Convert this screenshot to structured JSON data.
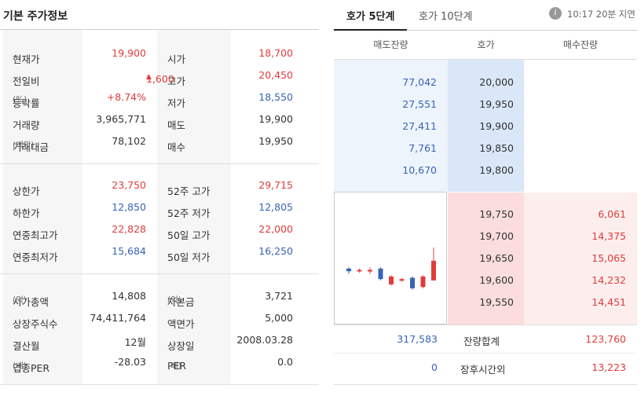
{
  "basic": {
    "title": "기본 주가정보",
    "section1": [
      {
        "l1": "현재가",
        "u1": "",
        "v1": "19,900",
        "c1": "red",
        "l2": "시가",
        "u2": "",
        "v2": "18,700",
        "c2": "red"
      },
      {
        "l1": "전일비",
        "u1": "",
        "v1": "1,600",
        "arrow": "▲",
        "c1": "red",
        "l2": "고가",
        "u2": "",
        "v2": "20,450",
        "c2": "red"
      },
      {
        "l1": "등락률",
        "u1": "(%)",
        "v1": "+8.74%",
        "c1": "red",
        "l2": "저가",
        "u2": "",
        "v2": "18,550",
        "c2": "blue"
      },
      {
        "l1": "거래량",
        "u1": "",
        "v1": "3,965,771",
        "c1": "dark",
        "l2": "매도",
        "u2": "",
        "v2": "19,900",
        "c2": "dark"
      },
      {
        "l1": "거래대금",
        "u1": "(백만)",
        "v1": "78,102",
        "c1": "dark",
        "l2": "매수",
        "u2": "",
        "v2": "19,950",
        "c2": "dark"
      }
    ],
    "section2": [
      {
        "l1": "상한가",
        "u1": "",
        "v1": "23,750",
        "c1": "red",
        "l2": "52주 고가",
        "u2": "",
        "v2": "29,715",
        "c2": "red"
      },
      {
        "l1": "하한가",
        "u1": "",
        "v1": "12,850",
        "c1": "blue",
        "l2": "52주 저가",
        "u2": "",
        "v2": "12,805",
        "c2": "blue"
      },
      {
        "l1": "연중최고가",
        "u1": "",
        "v1": "22,828",
        "c1": "red",
        "l2": "50일 고가",
        "u2": "",
        "v2": "22,000",
        "c2": "red"
      },
      {
        "l1": "연중최저가",
        "u1": "",
        "v1": "15,684",
        "c1": "blue",
        "l2": "50일 저가",
        "u2": "",
        "v2": "16,250",
        "c2": "blue"
      }
    ],
    "section3": [
      {
        "l1": "시가총액",
        "u1": "(억)",
        "v1": "14,808",
        "c1": "dark",
        "l2": "자본금",
        "u2": "(억)",
        "v2": "3,721",
        "c2": "dark"
      },
      {
        "l1": "상장주식수",
        "u1": "",
        "v1": "74,411,764",
        "c1": "dark",
        "l2": "액면가",
        "u2": "",
        "v2": "5,000",
        "c2": "dark"
      },
      {
        "l1": "결산월",
        "u1": "",
        "v1": "12월",
        "c1": "dark",
        "l2": "상장일",
        "u2": "",
        "v2": "2008.03.28",
        "c2": "dark"
      },
      {
        "l1": "업종PER",
        "u1": "(배)",
        "v1": "-28.03",
        "c1": "dark",
        "l2": "PER",
        "u2": "(배)",
        "v2": "0.0",
        "c2": "dark"
      }
    ]
  },
  "orderbook": {
    "tabs": [
      "호가 5단계",
      "호가 10단계"
    ],
    "info_icon": "i",
    "delay_text": "10:17 20분 지연",
    "headers": [
      "매도잔량",
      "호가",
      "매수잔량"
    ],
    "asks": [
      {
        "qty": "77,042",
        "price": "20,000"
      },
      {
        "qty": "27,551",
        "price": "19,950"
      },
      {
        "qty": "27,411",
        "price": "19,900"
      },
      {
        "qty": "7,761",
        "price": "19,850"
      },
      {
        "qty": "10,670",
        "price": "19,800"
      }
    ],
    "bids": [
      {
        "price": "19,750",
        "qty": "6,061"
      },
      {
        "price": "19,700",
        "qty": "14,375"
      },
      {
        "price": "19,650",
        "qty": "15,065"
      },
      {
        "price": "19,600",
        "qty": "14,232"
      },
      {
        "price": "19,550",
        "qty": "14,451"
      }
    ],
    "total_row": {
      "ask": "317,583",
      "label": "잔량합계",
      "bid": "123,760"
    },
    "after_row": {
      "ask": "0",
      "label": "장후시간외",
      "bid": "13,223"
    },
    "colors": {
      "up": "#e03c3c",
      "down": "#3863b8"
    }
  },
  "mini_candles": [
    {
      "o": 0.58,
      "c": 0.6,
      "h": 0.57,
      "l": 0.62,
      "dir": "down"
    },
    {
      "o": 0.6,
      "c": 0.59,
      "h": 0.58,
      "l": 0.61,
      "dir": "up"
    },
    {
      "o": 0.6,
      "c": 0.59,
      "h": 0.57,
      "l": 0.62,
      "dir": "up"
    },
    {
      "o": 0.58,
      "c": 0.66,
      "h": 0.57,
      "l": 0.67,
      "dir": "down"
    },
    {
      "o": 0.64,
      "c": 0.7,
      "h": 0.63,
      "l": 0.71,
      "dir": "up"
    },
    {
      "o": 0.66,
      "c": 0.67,
      "h": 0.65,
      "l": 0.68,
      "dir": "up"
    },
    {
      "o": 0.65,
      "c": 0.73,
      "h": 0.64,
      "l": 0.74,
      "dir": "down"
    },
    {
      "o": 0.72,
      "c": 0.64,
      "h": 0.63,
      "l": 0.73,
      "dir": "up"
    },
    {
      "o": 0.67,
      "c": 0.52,
      "h": 0.42,
      "l": 0.67,
      "dir": "up"
    }
  ]
}
